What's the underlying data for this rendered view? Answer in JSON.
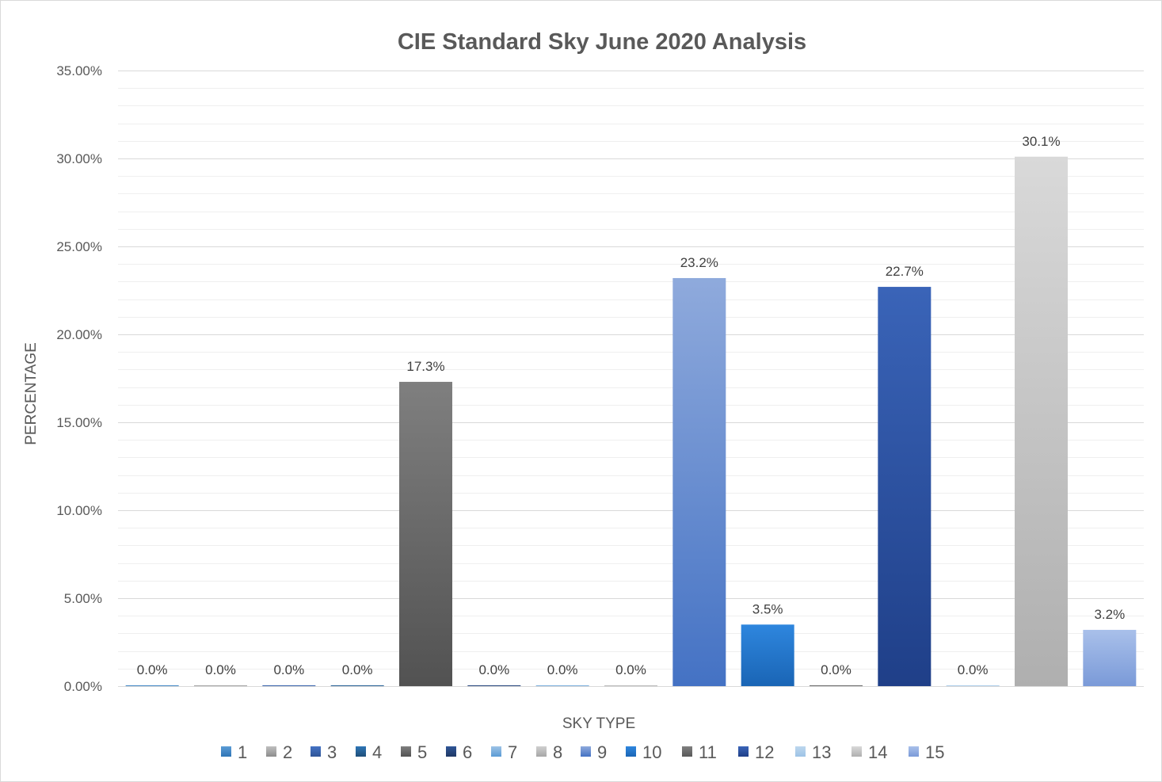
{
  "chart_data": {
    "type": "bar",
    "title": "CIE Standard Sky June 2020 Analysis",
    "xlabel": "SKY TYPE",
    "ylabel": "PERCENTAGE",
    "ylim": [
      0,
      35
    ],
    "y_ticks": [
      0,
      5,
      10,
      15,
      20,
      25,
      30,
      35
    ],
    "y_tick_labels": [
      "0.00%",
      "5.00%",
      "10.00%",
      "15.00%",
      "20.00%",
      "25.00%",
      "30.00%",
      "35.00%"
    ],
    "grid": "major and minor horizontal",
    "legend_position": "bottom",
    "categories": [
      "1",
      "2",
      "3",
      "4",
      "5",
      "6",
      "7",
      "8",
      "9",
      "10",
      "11",
      "12",
      "13",
      "14",
      "15"
    ],
    "values": [
      0.0,
      0.0,
      0.0,
      0.0,
      17.3,
      0.0,
      0.0,
      0.0,
      23.2,
      3.5,
      0.0,
      22.7,
      0.0,
      30.1,
      3.2
    ],
    "data_labels": [
      "0.0%",
      "0.0%",
      "0.0%",
      "0.0%",
      "17.3%",
      "0.0%",
      "0.0%",
      "0.0%",
      "23.2%",
      "3.5%",
      "0.0%",
      "22.7%",
      "0.0%",
      "30.1%",
      "3.2%"
    ],
    "colors": [
      [
        "#5b9bd5",
        "#2e75b6"
      ],
      [
        "#bfbfbf",
        "#8c8c8c"
      ],
      [
        "#4472c4",
        "#2f5597"
      ],
      [
        "#2e75b6",
        "#1f4e79"
      ],
      [
        "#7f7f7f",
        "#525252"
      ],
      [
        "#2f5597",
        "#1f3864"
      ],
      [
        "#9dc3e6",
        "#5b9bd5"
      ],
      [
        "#d0d0d0",
        "#a6a6a6"
      ],
      [
        "#8faadc",
        "#4472c4"
      ],
      [
        "#2e86de",
        "#1a65b5"
      ],
      [
        "#7f7f7f",
        "#595959"
      ],
      [
        "#3a64b8",
        "#1f3f88"
      ],
      [
        "#bdd7ee",
        "#9dc3e6"
      ],
      [
        "#d9d9d9",
        "#afafaf"
      ],
      [
        "#a9c0ea",
        "#7a9ad8"
      ]
    ]
  }
}
